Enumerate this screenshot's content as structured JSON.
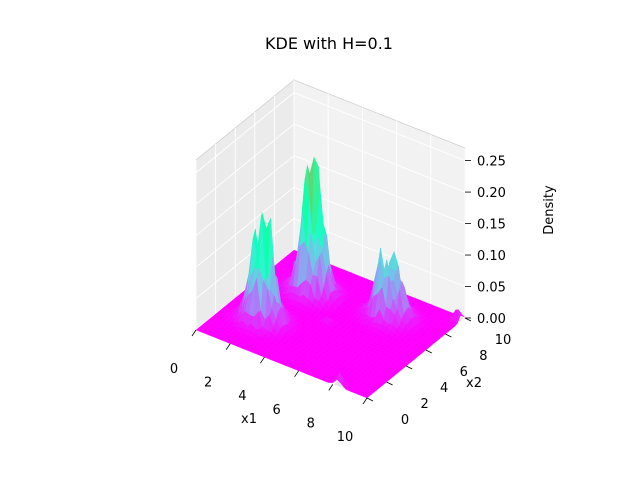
{
  "chart_data": {
    "type": "surface",
    "title": "KDE with H=0.1",
    "xlabel": "x1",
    "ylabel": "x2",
    "zlabel": "Density",
    "xlim": [
      0,
      10
    ],
    "ylim": [
      0,
      10
    ],
    "zlim": [
      0,
      0.27
    ],
    "xticks": [
      0,
      2,
      4,
      6,
      8,
      10
    ],
    "yticks": [
      0,
      2,
      4,
      6,
      8,
      10
    ],
    "zticks": [
      0.0,
      0.05,
      0.1,
      0.15,
      0.2,
      0.25
    ],
    "xtick_labels": [
      "0",
      "2",
      "4",
      "6",
      "8",
      "10"
    ],
    "ytick_labels": [
      "0",
      "2",
      "4",
      "6",
      "8",
      "10"
    ],
    "ztick_labels": [
      "0.00",
      "0.05",
      "0.10",
      "0.15",
      "0.20",
      "0.25"
    ],
    "colormap": "rainbow",
    "grid": true,
    "clusters": [
      {
        "center_x1": 2.2,
        "center_x2": 3.0,
        "peak_density": 0.21
      },
      {
        "center_x1": 2.8,
        "center_x2": 7.0,
        "peak_density": 0.25
      },
      {
        "center_x1": 7.0,
        "center_x2": 7.5,
        "peak_density": 0.17
      }
    ],
    "minor_bumps": [
      {
        "x1": 8.3,
        "x2": 0.2,
        "density": 0.02
      },
      {
        "x1": 4.8,
        "x2": 5.0,
        "density": 0.01
      },
      {
        "x1": 9.8,
        "x2": 9.6,
        "density": 0.02
      }
    ]
  }
}
